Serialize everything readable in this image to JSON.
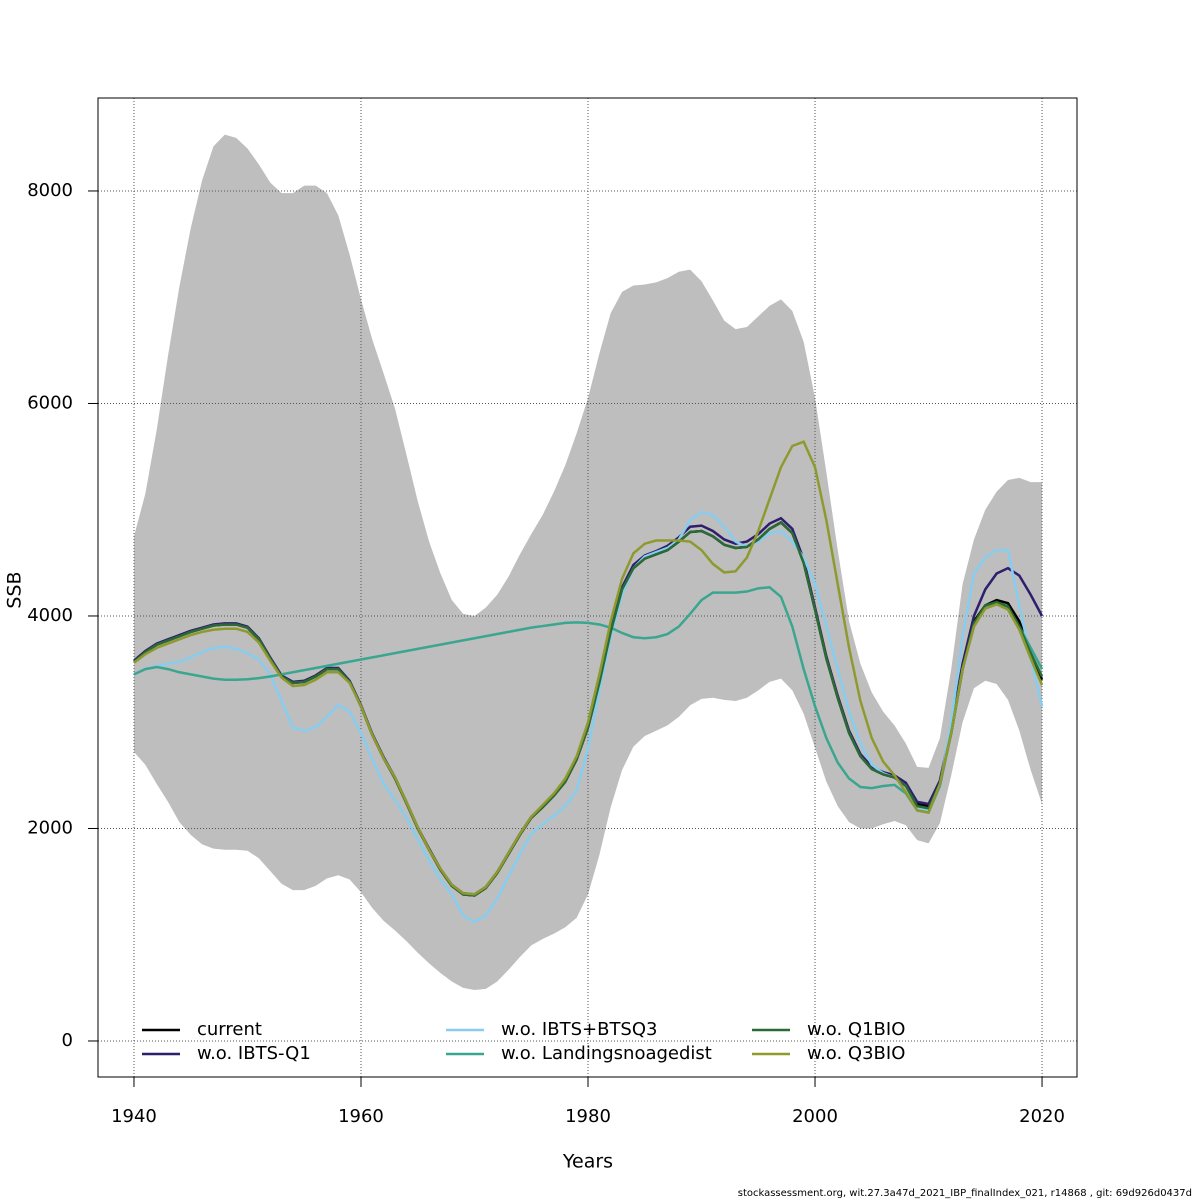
{
  "chart_data": {
    "type": "line",
    "xlabel": "Years",
    "ylabel": "SSB",
    "footer": "stockassessment.org, wit.27.3a47d_2021_IBP_finalIndex_021, r14868 , git: 69d926d0437d",
    "xlim": [
      1936.83,
      2023.08
    ],
    "ylim": [
      -339,
      8875
    ],
    "xticks": [
      1940,
      1960,
      1980,
      2000,
      2020
    ],
    "yticks": [
      0,
      2000,
      4000,
      6000,
      8000
    ],
    "grid": true,
    "x": [
      1940,
      1941,
      1942,
      1943,
      1944,
      1945,
      1946,
      1947,
      1948,
      1949,
      1950,
      1951,
      1952,
      1953,
      1954,
      1955,
      1956,
      1957,
      1958,
      1959,
      1960,
      1961,
      1962,
      1963,
      1964,
      1965,
      1966,
      1967,
      1968,
      1969,
      1970,
      1971,
      1972,
      1973,
      1974,
      1975,
      1976,
      1977,
      1978,
      1979,
      1980,
      1981,
      1982,
      1983,
      1984,
      1985,
      1986,
      1987,
      1988,
      1989,
      1990,
      1991,
      1992,
      1993,
      1994,
      1995,
      1996,
      1997,
      1998,
      1999,
      2000,
      2001,
      2002,
      2003,
      2004,
      2005,
      2006,
      2007,
      2008,
      2009,
      2010,
      2011,
      2012,
      2013,
      2014,
      2015,
      2016,
      2017,
      2018,
      2019,
      2020
    ],
    "band": {
      "color": "#bebebe",
      "upper": [
        4750,
        5150,
        5750,
        6450,
        7100,
        7650,
        8100,
        8420,
        8530,
        8500,
        8400,
        8250,
        8080,
        7980,
        7980,
        8050,
        8050,
        7980,
        7770,
        7400,
        6980,
        6600,
        6280,
        5950,
        5520,
        5080,
        4700,
        4400,
        4150,
        4020,
        4000,
        4080,
        4200,
        4370,
        4580,
        4770,
        4950,
        5170,
        5420,
        5720,
        6050,
        6470,
        6850,
        7050,
        7110,
        7120,
        7140,
        7180,
        7240,
        7260,
        7150,
        6970,
        6780,
        6700,
        6720,
        6820,
        6920,
        6980,
        6870,
        6580,
        6050,
        5350,
        4620,
        3950,
        3550,
        3280,
        3100,
        2970,
        2800,
        2580,
        2570,
        2850,
        3500,
        4300,
        4720,
        5000,
        5170,
        5280,
        5300,
        5260,
        5260
      ],
      "lower": [
        2720,
        2600,
        2420,
        2250,
        2060,
        1940,
        1850,
        1810,
        1800,
        1800,
        1790,
        1720,
        1600,
        1480,
        1420,
        1420,
        1460,
        1530,
        1560,
        1520,
        1400,
        1250,
        1130,
        1040,
        940,
        830,
        730,
        640,
        560,
        500,
        480,
        490,
        560,
        670,
        790,
        900,
        960,
        1010,
        1070,
        1160,
        1380,
        1750,
        2200,
        2550,
        2770,
        2870,
        2920,
        2970,
        3050,
        3160,
        3220,
        3230,
        3210,
        3200,
        3230,
        3300,
        3380,
        3410,
        3300,
        3080,
        2760,
        2440,
        2210,
        2060,
        2000,
        2000,
        2040,
        2070,
        2030,
        1890,
        1860,
        2050,
        2500,
        3000,
        3320,
        3390,
        3360,
        3210,
        2920,
        2550,
        2230
      ]
    },
    "series": [
      {
        "name": "current",
        "color": "#000000",
        "values": [
          3570,
          3660,
          3730,
          3770,
          3810,
          3850,
          3880,
          3910,
          3920,
          3920,
          3890,
          3780,
          3600,
          3430,
          3370,
          3380,
          3430,
          3500,
          3500,
          3380,
          3150,
          2880,
          2660,
          2470,
          2240,
          2000,
          1800,
          1610,
          1460,
          1380,
          1370,
          1440,
          1580,
          1760,
          1940,
          2100,
          2200,
          2310,
          2440,
          2650,
          2950,
          3370,
          3850,
          4250,
          4450,
          4540,
          4580,
          4620,
          4700,
          4790,
          4800,
          4750,
          4670,
          4640,
          4650,
          4720,
          4820,
          4880,
          4780,
          4500,
          4060,
          3600,
          3230,
          2900,
          2680,
          2560,
          2510,
          2480,
          2410,
          2230,
          2210,
          2430,
          2900,
          3500,
          3950,
          4100,
          4150,
          4120,
          3950,
          3650,
          3400
        ]
      },
      {
        "name": "w.o. IBTS-Q1",
        "color": "#2f1d6e",
        "values": [
          3580,
          3670,
          3740,
          3780,
          3820,
          3860,
          3890,
          3920,
          3930,
          3930,
          3900,
          3790,
          3610,
          3440,
          3380,
          3390,
          3440,
          3510,
          3510,
          3390,
          3160,
          2890,
          2670,
          2480,
          2250,
          2010,
          1810,
          1620,
          1470,
          1390,
          1380,
          1450,
          1590,
          1770,
          1950,
          2110,
          2210,
          2320,
          2450,
          2660,
          2960,
          3380,
          3860,
          4270,
          4480,
          4570,
          4610,
          4660,
          4740,
          4840,
          4850,
          4800,
          4720,
          4680,
          4700,
          4770,
          4870,
          4920,
          4820,
          4530,
          4080,
          3620,
          3250,
          2920,
          2700,
          2580,
          2530,
          2500,
          2430,
          2250,
          2230,
          2450,
          2950,
          3550,
          4000,
          4250,
          4400,
          4450,
          4380,
          4200,
          4000
        ]
      },
      {
        "name": "w.o. IBTS+BTSQ3",
        "color": "#87cdf0",
        "values": [
          3450,
          3500,
          3530,
          3550,
          3570,
          3610,
          3660,
          3700,
          3710,
          3690,
          3650,
          3590,
          3450,
          3200,
          2950,
          2920,
          2950,
          3050,
          3160,
          3100,
          2900,
          2650,
          2420,
          2270,
          2100,
          1900,
          1700,
          1520,
          1380,
          1180,
          1120,
          1180,
          1340,
          1550,
          1760,
          1950,
          2040,
          2120,
          2210,
          2360,
          2750,
          3300,
          3800,
          4200,
          4450,
          4560,
          4600,
          4640,
          4720,
          4900,
          4980,
          4950,
          4840,
          4700,
          4650,
          4700,
          4780,
          4800,
          4700,
          4550,
          4300,
          3900,
          3500,
          3100,
          2800,
          2600,
          2520,
          2480,
          2400,
          2190,
          2170,
          2400,
          3000,
          3800,
          4400,
          4550,
          4620,
          4620,
          4100,
          3600,
          3150
        ]
      },
      {
        "name": "w.o. Landingsnoagedist",
        "color": "#3aa68f",
        "values": [
          3450,
          3500,
          3520,
          3500,
          3470,
          3450,
          3430,
          3410,
          3400,
          3400,
          3405,
          3415,
          3430,
          3450,
          3470,
          3490,
          3510,
          3530,
          3550,
          3570,
          3590,
          3610,
          3630,
          3650,
          3670,
          3690,
          3710,
          3730,
          3750,
          3770,
          3790,
          3810,
          3830,
          3850,
          3870,
          3890,
          3905,
          3920,
          3935,
          3940,
          3935,
          3920,
          3890,
          3840,
          3800,
          3790,
          3800,
          3830,
          3900,
          4020,
          4150,
          4220,
          4220,
          4220,
          4230,
          4260,
          4270,
          4180,
          3900,
          3500,
          3150,
          2850,
          2620,
          2470,
          2390,
          2380,
          2400,
          2410,
          2330,
          2170,
          2150,
          2400,
          2900,
          3500,
          3900,
          4080,
          4130,
          4080,
          3900,
          3700,
          3500
        ]
      },
      {
        "name": "w.o. Q1BIO",
        "color": "#2a6a35",
        "values": [
          3570,
          3660,
          3730,
          3770,
          3810,
          3850,
          3880,
          3910,
          3920,
          3920,
          3890,
          3780,
          3600,
          3430,
          3370,
          3380,
          3430,
          3500,
          3500,
          3380,
          3150,
          2880,
          2660,
          2470,
          2240,
          2000,
          1800,
          1610,
          1460,
          1380,
          1370,
          1440,
          1580,
          1760,
          1940,
          2100,
          2200,
          2310,
          2440,
          2650,
          2950,
          3370,
          3850,
          4250,
          4450,
          4540,
          4580,
          4620,
          4700,
          4790,
          4800,
          4750,
          4670,
          4640,
          4650,
          4720,
          4820,
          4880,
          4780,
          4500,
          4060,
          3600,
          3230,
          2900,
          2680,
          2560,
          2510,
          2480,
          2400,
          2210,
          2190,
          2420,
          2900,
          3500,
          3930,
          4100,
          4130,
          4090,
          3900,
          3650,
          3430
        ]
      },
      {
        "name": "w.o. Q3BIO",
        "color": "#8f9a2e",
        "values": [
          3560,
          3640,
          3700,
          3740,
          3780,
          3820,
          3850,
          3870,
          3880,
          3880,
          3850,
          3750,
          3580,
          3420,
          3340,
          3350,
          3400,
          3470,
          3470,
          3370,
          3150,
          2880,
          2660,
          2480,
          2250,
          2010,
          1800,
          1620,
          1470,
          1390,
          1380,
          1450,
          1590,
          1770,
          1950,
          2110,
          2220,
          2330,
          2470,
          2680,
          3000,
          3450,
          3950,
          4350,
          4590,
          4680,
          4710,
          4710,
          4710,
          4700,
          4620,
          4490,
          4410,
          4420,
          4550,
          4800,
          5100,
          5400,
          5600,
          5640,
          5400,
          4900,
          4300,
          3700,
          3200,
          2850,
          2630,
          2500,
          2340,
          2170,
          2150,
          2420,
          2900,
          3500,
          3900,
          4070,
          4110,
          4060,
          3870,
          3600,
          3350
        ]
      }
    ]
  }
}
